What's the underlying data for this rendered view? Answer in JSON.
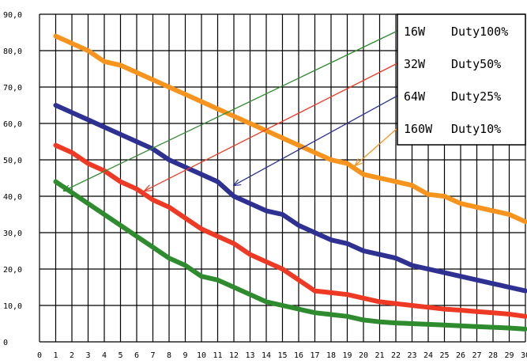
{
  "chart_data": {
    "type": "line",
    "title": "",
    "xlabel": "",
    "ylabel": "",
    "xlim": [
      0,
      30
    ],
    "ylim": [
      0,
      90
    ],
    "x_ticks": [
      "0",
      "1",
      "2",
      "3",
      "4",
      "5",
      "6",
      "7",
      "8",
      "9",
      "10",
      "11",
      "12",
      "13",
      "14",
      "15",
      "16",
      "17",
      "18",
      "19",
      "20",
      "21",
      "22",
      "23",
      "24",
      "25",
      "26",
      "27",
      "28",
      "29",
      "30"
    ],
    "y_ticks": [
      "0",
      "10,0",
      "20,0",
      "30,0",
      "40,0",
      "50,0",
      "60,0",
      "70,0",
      "80,0",
      "90,0"
    ],
    "grid": true,
    "legend_position": "top-right",
    "series": [
      {
        "name": "16W   Duty100%",
        "color": "#2e8b2e",
        "arrow_color": "#2e8b2e",
        "arrow_target": [
          1.5,
          41.5
        ],
        "x": [
          1,
          2,
          3,
          4,
          5,
          6,
          7,
          8,
          9,
          10,
          11,
          12,
          13,
          14,
          15,
          16,
          17,
          18,
          19,
          20,
          21,
          22,
          23,
          24,
          25,
          26,
          27,
          28,
          29,
          30
        ],
        "values": [
          44,
          41,
          38,
          35,
          32,
          29,
          26,
          23,
          21,
          18,
          17,
          15,
          13,
          11,
          10,
          9,
          8,
          7.5,
          7,
          6,
          5.5,
          5.2,
          5,
          4.8,
          4.6,
          4.4,
          4.2,
          4,
          3.8,
          3.5
        ]
      },
      {
        "name": "32W   Duty50%",
        "color": "#ee3a24",
        "arrow_color": "#ee3a24",
        "arrow_target": [
          6.5,
          41.5
        ],
        "x": [
          1,
          2,
          3,
          4,
          5,
          6,
          7,
          8,
          9,
          10,
          11,
          12,
          13,
          14,
          15,
          16,
          17,
          18,
          19,
          20,
          21,
          22,
          23,
          24,
          25,
          26,
          27,
          28,
          29,
          30
        ],
        "values": [
          54,
          52,
          49,
          47,
          44,
          42,
          39,
          37,
          34,
          31,
          29,
          27,
          24,
          22,
          20,
          17,
          14,
          13.5,
          13,
          12,
          11,
          10.5,
          10,
          9.5,
          9,
          8.7,
          8.3,
          8,
          7.6,
          7
        ]
      },
      {
        "name": "64W   Duty25%",
        "color": "#2e3192",
        "arrow_color": "#2e3192",
        "arrow_target": [
          12,
          43
        ],
        "x": [
          1,
          2,
          3,
          4,
          5,
          6,
          7,
          8,
          9,
          10,
          11,
          12,
          13,
          14,
          15,
          16,
          17,
          18,
          19,
          20,
          21,
          22,
          23,
          24,
          25,
          26,
          27,
          28,
          29,
          30
        ],
        "values": [
          65,
          63,
          61,
          59,
          57,
          55,
          53,
          50,
          48,
          46,
          44,
          40,
          38,
          36,
          35,
          32,
          30,
          28,
          27,
          25,
          24,
          23,
          21,
          20,
          19,
          18,
          17,
          16,
          15,
          14
        ]
      },
      {
        "name": "160W  Duty10%",
        "color": "#f7941d",
        "arrow_color": "#f7941d",
        "arrow_target": [
          19.5,
          48.5
        ],
        "x": [
          1,
          2,
          3,
          4,
          5,
          6,
          7,
          8,
          9,
          10,
          11,
          12,
          13,
          14,
          15,
          16,
          17,
          18,
          19,
          20,
          21,
          22,
          23,
          24,
          25,
          26,
          27,
          28,
          29,
          30
        ],
        "values": [
          84,
          82,
          80,
          77,
          76,
          74,
          72,
          70,
          68,
          66,
          64,
          62,
          60,
          58,
          56,
          54,
          52,
          50,
          49,
          46,
          45,
          44,
          43,
          40.5,
          40,
          38,
          37,
          36,
          35,
          33
        ]
      }
    ]
  }
}
